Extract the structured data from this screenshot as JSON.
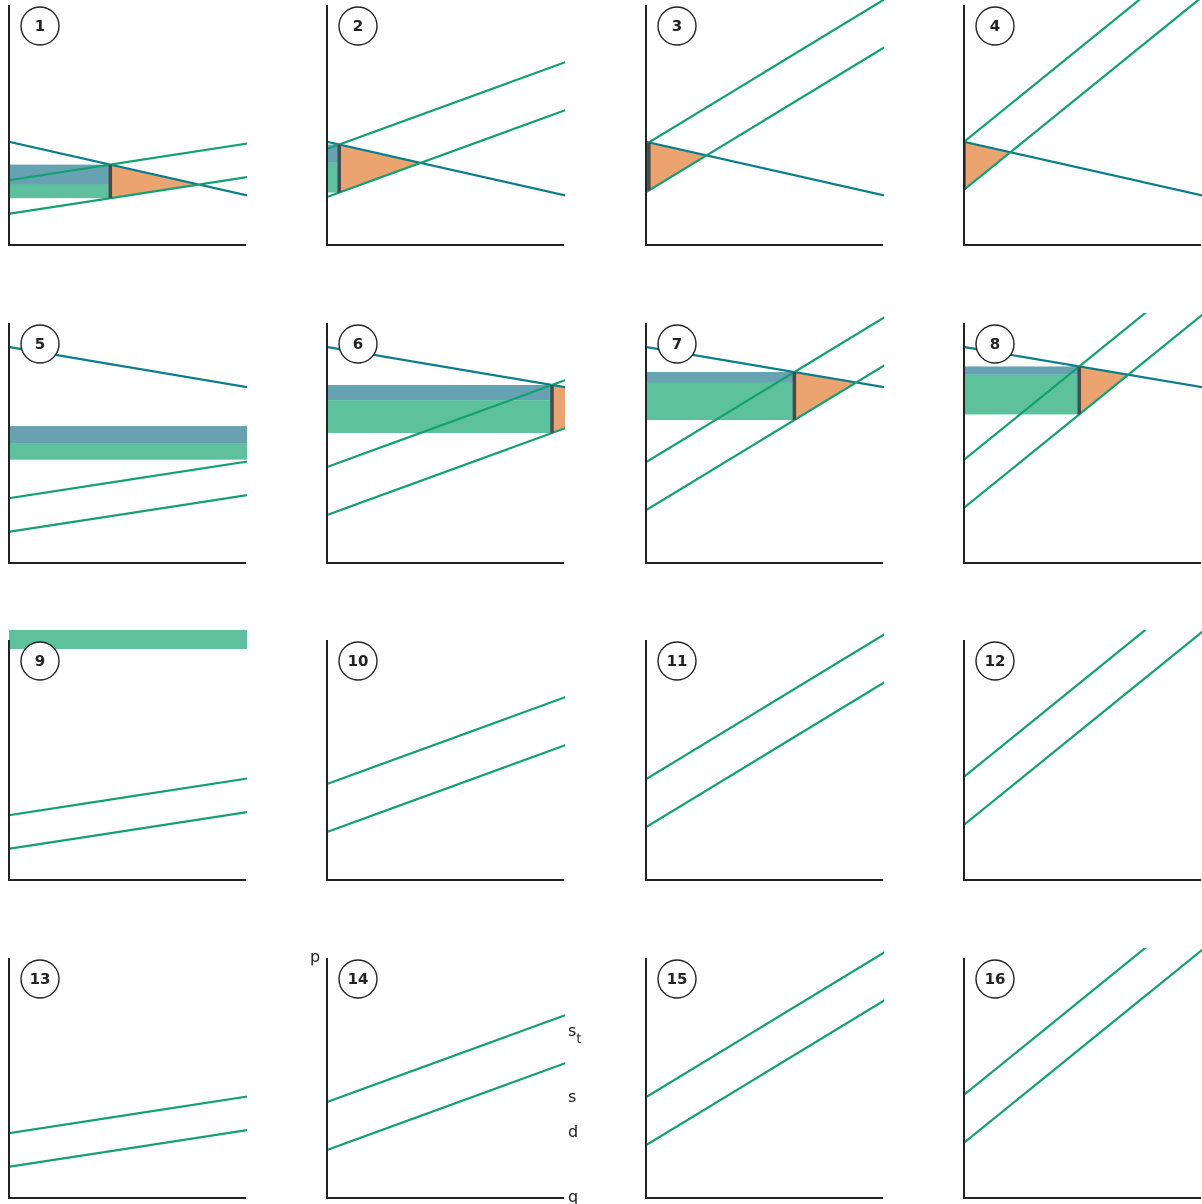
{
  "colors": {
    "demand": "#0a7d8c",
    "supply": "#13a070",
    "consumer_tax_area": "#66a2b2",
    "producer_tax_area": "#5ec19e",
    "deadweight_loss": "#eba36f",
    "tax_wedge": "#444c50",
    "axis": "#222222",
    "number_circle_stroke": "#222222"
  },
  "grid": {
    "rows_demand_slope": [
      "steep",
      "medium",
      "flatter",
      "flat"
    ],
    "cols_supply_slope": [
      "flat",
      "medium",
      "steeper",
      "steep"
    ]
  },
  "panels": [
    {
      "number": "1"
    },
    {
      "number": "2"
    },
    {
      "number": "3"
    },
    {
      "number": "4"
    },
    {
      "number": "5"
    },
    {
      "number": "6"
    },
    {
      "number": "7"
    },
    {
      "number": "8"
    },
    {
      "number": "9"
    },
    {
      "number": "10"
    },
    {
      "number": "11"
    },
    {
      "number": "12"
    },
    {
      "number": "13"
    },
    {
      "number": "14"
    },
    {
      "number": "15"
    },
    {
      "number": "16"
    }
  ],
  "labels": {
    "price_axis": "p",
    "quantity_axis": "q",
    "taxed_supply_main": "s",
    "taxed_supply_sub": "t",
    "supply": "s",
    "demand": "d"
  }
}
